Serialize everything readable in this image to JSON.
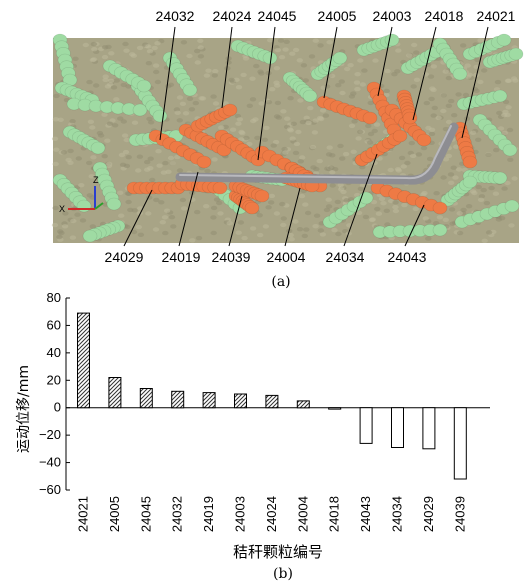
{
  "panel_a": {
    "caption": "(a)",
    "top_labels": [
      "24032",
      "24024",
      "24045",
      "24005",
      "24003",
      "24018",
      "24021"
    ],
    "bottom_labels": [
      "24029",
      "24019",
      "24039",
      "24004",
      "24034",
      "24043"
    ],
    "axis_triad": {
      "z": "Z",
      "x": "X"
    },
    "colors": {
      "soil": "#a8a486",
      "straw_background": "#9fdba3",
      "straw_highlight": "#ee7a45",
      "tool": "#8d8d92"
    }
  },
  "panel_b": {
    "caption": "(b)"
  },
  "chart_data": {
    "type": "bar",
    "categories": [
      "24021",
      "24005",
      "24045",
      "24032",
      "24019",
      "24003",
      "24024",
      "24004",
      "24018",
      "24043",
      "24034",
      "24029",
      "24039"
    ],
    "values": [
      69,
      22,
      14,
      12,
      11,
      10,
      9,
      5,
      -1,
      -26,
      -29,
      -30,
      -52
    ],
    "ylabel": "运动位移/mm",
    "xlabel": "秸秆颗粒编号",
    "ylim": [
      -60,
      80
    ],
    "yticks": [
      -60,
      -40,
      -20,
      0,
      20,
      40,
      60,
      80
    ],
    "grid": false,
    "legend": "none",
    "styles": {
      "positive": "hatched",
      "negative": "outline"
    }
  }
}
